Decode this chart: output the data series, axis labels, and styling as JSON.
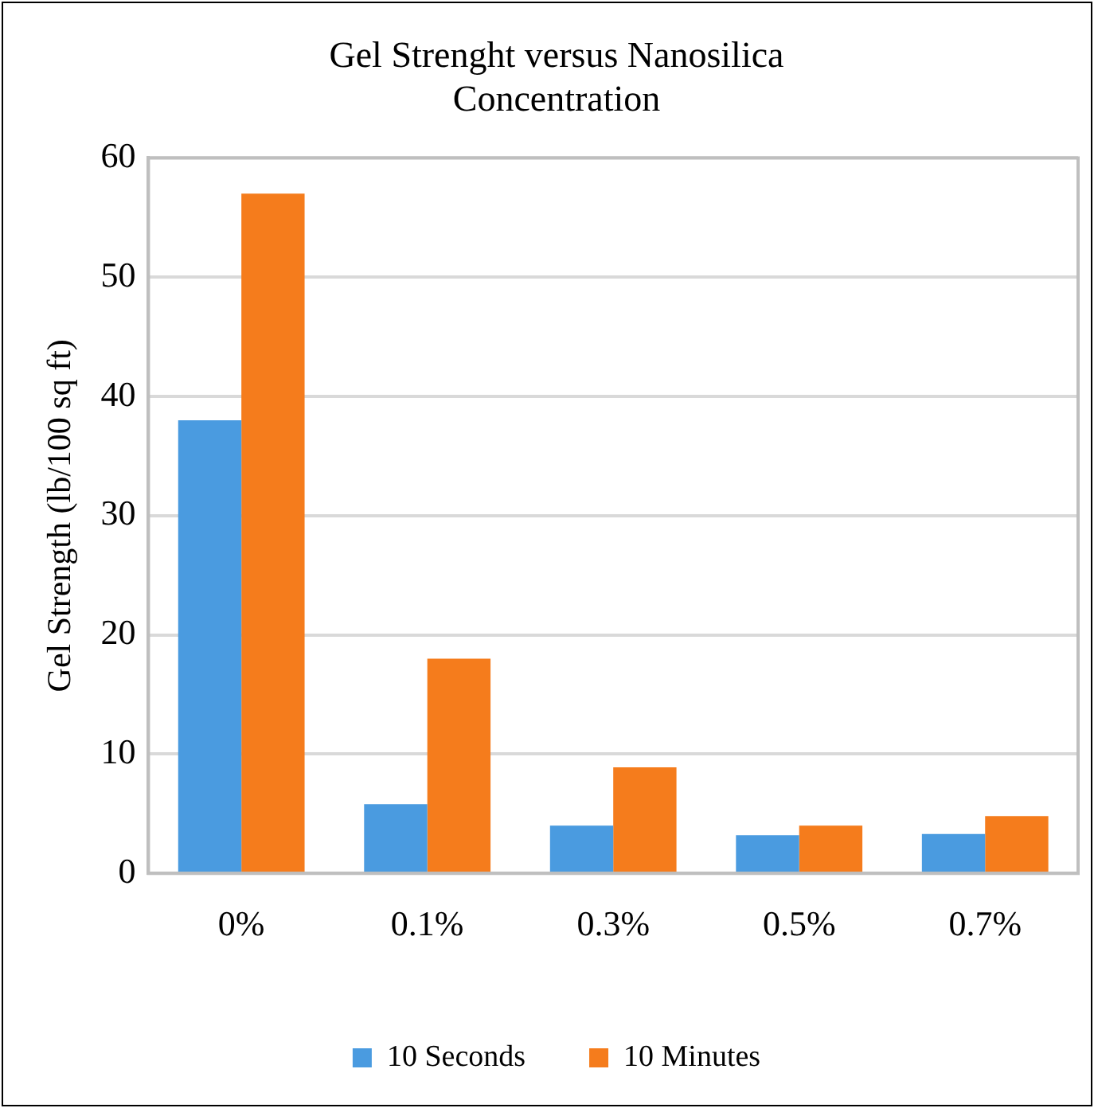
{
  "chart_data": {
    "type": "bar",
    "title": "Gel Strenght versus Nanosilica Concentration",
    "ylabel": "Gel Strength (lb/100 sq ft)",
    "categories": [
      "0%",
      "0.1%",
      "0.3%",
      "0.5%",
      "0.7%"
    ],
    "series": [
      {
        "name": "10 Seconds",
        "color": "#4a9be0",
        "values": [
          38,
          5.8,
          4,
          3.2,
          3.3
        ]
      },
      {
        "name": "10 Minutes",
        "color": "#f57c1c",
        "values": [
          57,
          18,
          8.9,
          4,
          4.8
        ]
      }
    ],
    "ylim": [
      0,
      60
    ],
    "yticks": [
      0,
      10,
      20,
      30,
      40,
      50,
      60
    ],
    "grid": "y",
    "legend": "bottom"
  }
}
